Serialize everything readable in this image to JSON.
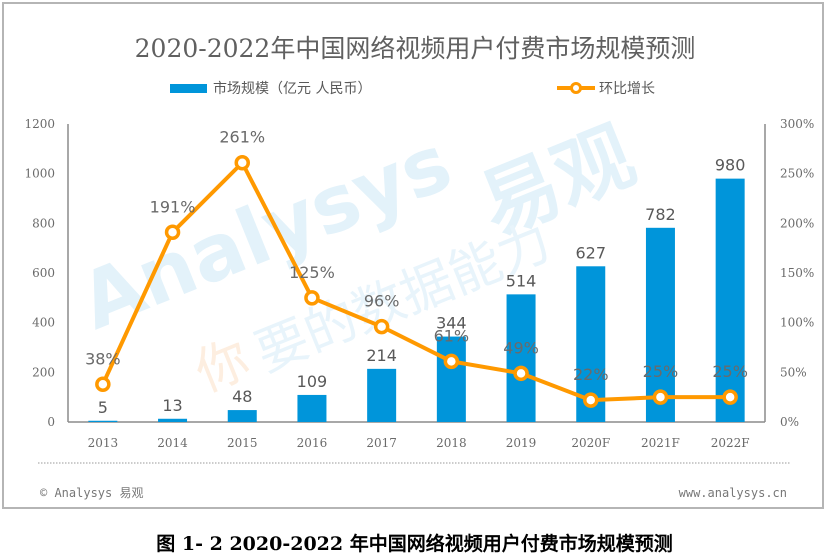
{
  "chart_data": {
    "type": "bar+line",
    "title": "2020-2022年中国网络视频用户付费市场规模预测",
    "categories": [
      "2013",
      "2014",
      "2015",
      "2016",
      "2017",
      "2018",
      "2019",
      "2020F",
      "2021F",
      "2022F"
    ],
    "series": [
      {
        "name": "市场规模（亿元 人民币）",
        "type": "bar",
        "axis": "left",
        "color": "#0095DA",
        "values": [
          5,
          13,
          48,
          109,
          214,
          344,
          514,
          627,
          782,
          980
        ],
        "labels": [
          "5",
          "13",
          "48",
          "109",
          "214",
          "344",
          "514",
          "627",
          "782",
          "980"
        ]
      },
      {
        "name": "环比增长",
        "type": "line",
        "axis": "right",
        "color": "#FF9900",
        "values": [
          38,
          191,
          261,
          125,
          96,
          61,
          49,
          22,
          25,
          25
        ],
        "labels": [
          "38%",
          "191%",
          "261%",
          "125%",
          "96%",
          "61%",
          "49%",
          "22%",
          "25%",
          "25%"
        ]
      }
    ],
    "y_left": {
      "min": 0,
      "max": 1200,
      "ticks": [
        "0",
        "200",
        "400",
        "600",
        "800",
        "1000",
        "1200"
      ]
    },
    "y_right": {
      "min": 0,
      "max": 300,
      "ticks": [
        "0%",
        "50%",
        "100%",
        "150%",
        "200%",
        "250%",
        "300%"
      ]
    },
    "legend": {
      "position": "top"
    },
    "grid": false
  },
  "legend": {
    "bar_label": "市场规模（亿元 人民币）",
    "line_label": "环比增长"
  },
  "watermark": {
    "brand": "Analysys",
    "brand_cn": "易观",
    "slogan_first": "你",
    "slogan_rest": "要的数据能力"
  },
  "footer": {
    "copyright": "© Analysys 易观",
    "website": "www.analysys.cn"
  },
  "caption": "图 1- 2 2020-2022 年中国网络视频用户付费市场规模预测"
}
